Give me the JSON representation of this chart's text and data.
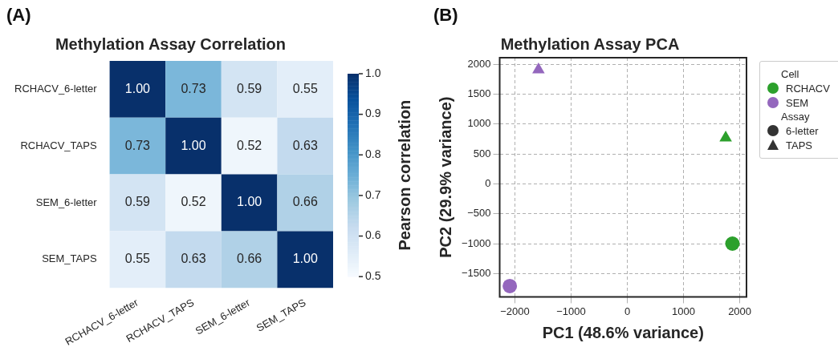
{
  "chart_data": [
    {
      "type": "heatmap",
      "title": "Methylation Assay Correlation",
      "annotations": [
        "(A)"
      ],
      "categories": [
        "RCHACV_6-letter",
        "RCHACV_TAPS",
        "SEM_6-letter",
        "SEM_TAPS"
      ],
      "y_categories": [
        "RCHACV_6-letter",
        "RCHACV_TAPS",
        "SEM_6-letter",
        "SEM_TAPS"
      ],
      "cells": [
        [
          1.0,
          0.73,
          0.59,
          0.55
        ],
        [
          0.73,
          1.0,
          0.52,
          0.63
        ],
        [
          0.59,
          0.52,
          1.0,
          0.66
        ],
        [
          0.55,
          0.63,
          0.66,
          1.0
        ]
      ],
      "cell_labels": [
        [
          "1.00",
          "0.73",
          "0.59",
          "0.55"
        ],
        [
          "0.73",
          "1.00",
          "0.52",
          "0.63"
        ],
        [
          "0.59",
          "0.52",
          "1.00",
          "0.66"
        ],
        [
          "0.55",
          "0.63",
          "0.66",
          "1.00"
        ]
      ],
      "clabel": "Pearson correlation",
      "clim": [
        0.5,
        1.0
      ],
      "cticks": [
        0.5,
        0.6,
        0.7,
        0.8,
        0.9,
        {
          "value": 1,
          "label": "1.0"
        }
      ]
    },
    {
      "type": "scatter",
      "title": "Methylation Assay PCA",
      "annotations": [
        "(B)"
      ],
      "xlabel": "PC1 (48.6% variance)",
      "ylabel": "PC2 (29.9% variance)",
      "xlim": [
        -2270,
        2120
      ],
      "xticks": [
        -2000,
        -1000,
        0,
        1000,
        2000
      ],
      "ylim": [
        -1890,
        2110
      ],
      "yticks": [
        -1500,
        -1000,
        -500,
        0,
        500,
        1000,
        1500,
        2000
      ],
      "grid": true,
      "legend": "right",
      "legend_title": [
        "Cell",
        "Assay"
      ],
      "series": [
        {
          "name": "RCHACV",
          "color": "#2ca02c",
          "x": [
            1870,
            1750
          ],
          "values": [
            -1000,
            770
          ],
          "marker": [
            "circle",
            "triangle"
          ]
        },
        {
          "name": "SEM",
          "color": "#9467bd",
          "x": [
            -2090,
            -1580
          ],
          "values": [
            -1710,
            1910
          ],
          "marker": [
            "circle",
            "triangle"
          ]
        },
        {
          "name": "6-letter",
          "color": "#333333",
          "marker": "circle"
        },
        {
          "name": "TAPS",
          "color": "#333333",
          "marker": "triangle"
        }
      ]
    }
  ]
}
